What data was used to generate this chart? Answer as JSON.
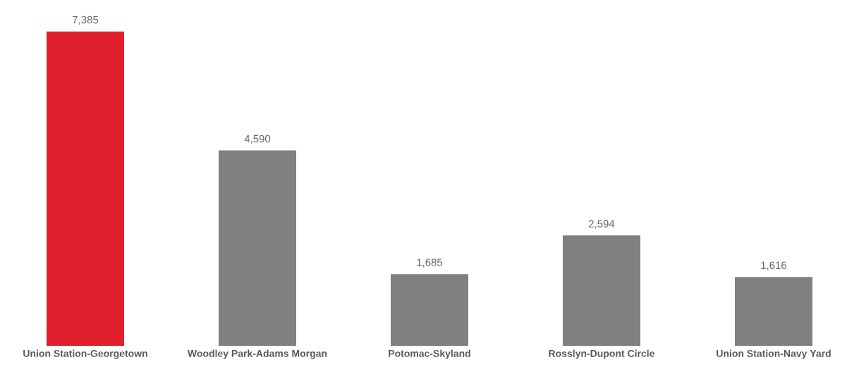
{
  "chart_data": {
    "type": "bar",
    "categories": [
      "Union Station-Georgetown",
      "Woodley Park-Adams Morgan",
      "Potomac-Skyland",
      "Rosslyn-Dupont Circle",
      "Union Station-Navy Yard"
    ],
    "values": [
      7385,
      4590,
      1685,
      2594,
      1616
    ],
    "value_labels": [
      "7,385",
      "4,590",
      "1,685",
      "2,594",
      "1,616"
    ],
    "colors": [
      "#e21f2d",
      "#808080",
      "#808080",
      "#808080",
      "#808080"
    ]
  }
}
